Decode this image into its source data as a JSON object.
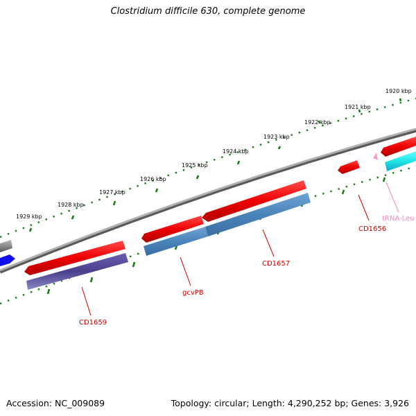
{
  "title": "Clostridium difficile 630, complete genome",
  "footer": {
    "accession": "Accession: NC_009089",
    "summary": "Topology: circular; Length: 4,290,252 bp; Genes: 3,926"
  },
  "scale": {
    "tick_labels": [
      "1920 kbp",
      "1921 kbp",
      "1922 kbp",
      "1923 kbp",
      "1924 kbp",
      "1925 kbp",
      "1926 kbp",
      "1927 kbp",
      "1928 kbp",
      "1929 kbp"
    ],
    "tick_color": "#1a7a1a"
  },
  "genes": [
    {
      "name": "CD1659",
      "color": "#cc0000"
    },
    {
      "name": "gcvPB",
      "color": "#cc0000"
    },
    {
      "name": "CD1657",
      "color": "#cc0000"
    },
    {
      "name": "CD1656",
      "color": "#cc0000"
    },
    {
      "name": "tRNA-Leu",
      "color": "#ee88bb"
    }
  ],
  "colors": {
    "backbone": "#8a8a8a",
    "cds_forward": "#ff1a1a",
    "cds_blue": "#4a84bb",
    "cds_purple": "#4a3f8c",
    "trna": "#22e5e5",
    "pink": "#f0a0c8",
    "grey_feature": "#6e6e6e",
    "blue_feature": "#1010ee"
  }
}
